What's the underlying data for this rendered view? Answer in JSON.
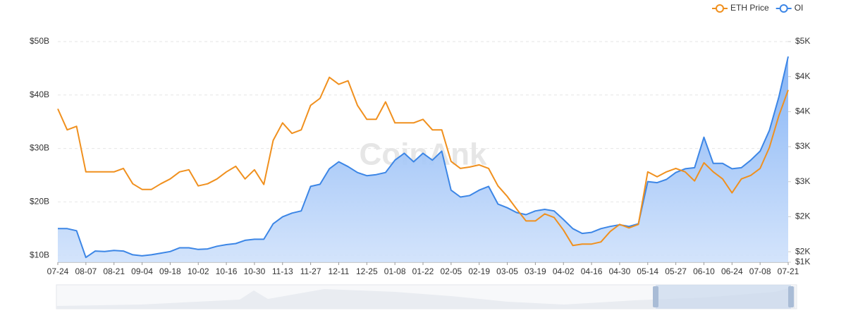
{
  "chart_data": {
    "type": "line",
    "watermark": "CoinAnk",
    "categories": [
      "07-24",
      null,
      null,
      "08-07",
      null,
      null,
      "08-21",
      null,
      null,
      "09-04",
      null,
      null,
      "09-18",
      null,
      null,
      "10-02",
      null,
      null,
      "10-16",
      null,
      null,
      "10-30",
      null,
      null,
      "11-13",
      null,
      null,
      "11-27",
      null,
      null,
      "12-11",
      null,
      null,
      "12-25",
      null,
      null,
      "01-08",
      null,
      null,
      "01-22",
      null,
      null,
      "02-05",
      null,
      null,
      "02-19",
      null,
      null,
      "03-05",
      null,
      null,
      "03-19",
      null,
      null,
      "04-02",
      null,
      null,
      "04-16",
      null,
      null,
      "04-30",
      null,
      null,
      "05-14",
      null,
      null,
      "05-27",
      null,
      null,
      "06-10",
      null,
      null,
      "06-24",
      null,
      null,
      "07-08",
      null,
      null,
      "07-21"
    ],
    "series": [
      {
        "name": "ETH Price",
        "color": "#f0901e",
        "axis": "y2",
        "values": [
          3540,
          3240,
          3290,
          2640,
          2640,
          2640,
          2640,
          2690,
          2470,
          2390,
          2390,
          2470,
          2540,
          2640,
          2670,
          2440,
          2470,
          2540,
          2640,
          2720,
          2540,
          2670,
          2460,
          3090,
          3340,
          3190,
          3240,
          3590,
          3690,
          3990,
          3890,
          3940,
          3590,
          3390,
          3390,
          3640,
          3340,
          3340,
          3340,
          3390,
          3240,
          3240,
          2790,
          2690,
          2710,
          2740,
          2690,
          2440,
          2290,
          2110,
          1940,
          1940,
          2040,
          1990,
          1810,
          1590,
          1610,
          1610,
          1640,
          1790,
          1890,
          1840,
          1890,
          2640,
          2570,
          2640,
          2690,
          2640,
          2510,
          2770,
          2640,
          2540,
          2340,
          2540,
          2590,
          2690,
          2990,
          3440,
          3810
        ]
      },
      {
        "name": "OI",
        "color": "#3c86e6",
        "area": true,
        "values": [
          15.0,
          15.0,
          14.6,
          9.6,
          10.8,
          10.7,
          10.9,
          10.8,
          10.1,
          9.9,
          10.1,
          10.4,
          10.7,
          11.4,
          11.4,
          11.1,
          11.2,
          11.7,
          12.0,
          12.2,
          12.8,
          13.0,
          13.0,
          15.9,
          17.2,
          17.9,
          18.3,
          22.9,
          23.3,
          26.2,
          27.5,
          26.6,
          25.5,
          24.9,
          25.1,
          25.5,
          27.8,
          29.1,
          27.5,
          29.1,
          27.8,
          29.5,
          22.2,
          20.9,
          21.2,
          22.2,
          22.9,
          19.6,
          18.9,
          18.0,
          17.6,
          18.3,
          18.6,
          18.3,
          16.7,
          15.0,
          14.1,
          14.3,
          15.0,
          15.4,
          15.7,
          15.4,
          15.9,
          23.8,
          23.6,
          24.2,
          25.5,
          26.2,
          26.4,
          32.1,
          27.2,
          27.2,
          26.2,
          26.4,
          27.8,
          29.5,
          33.4,
          39.6,
          47.2
        ]
      }
    ],
    "ylim": [
      8.7,
      50
    ],
    "yticks": [
      {
        "value": 10,
        "label": "$10B"
      },
      {
        "value": 20,
        "label": "$20B"
      },
      {
        "value": 30,
        "label": "$30B"
      },
      {
        "value": 40,
        "label": "$40B"
      },
      {
        "value": 50,
        "label": "$50B"
      }
    ],
    "y2lim": [
      1350,
      4500
    ],
    "y2ticks": [
      {
        "value": 1350,
        "label": "$1K"
      },
      {
        "value": 1500,
        "label": "$2K"
      },
      {
        "value": 2000,
        "label": "$2K"
      },
      {
        "value": 2500,
        "label": "$3K"
      },
      {
        "value": 3000,
        "label": "$3K"
      },
      {
        "value": 3500,
        "label": "$4K"
      },
      {
        "value": 4000,
        "label": "$4K"
      },
      {
        "value": 4500,
        "label": "$5K"
      }
    ],
    "grid": true,
    "legend": "top-right"
  }
}
